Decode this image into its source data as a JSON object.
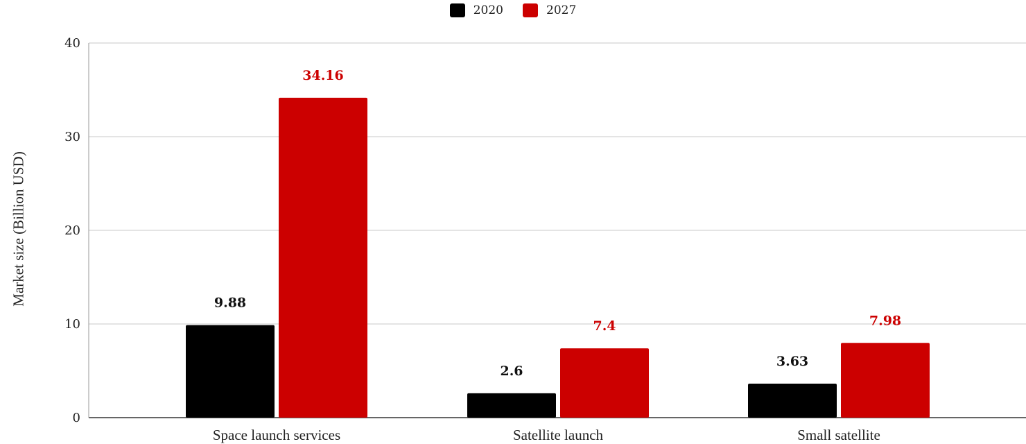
{
  "chart_data": {
    "type": "bar",
    "categories": [
      "Space launch services",
      "Satellite launch",
      "Small satellite"
    ],
    "series": [
      {
        "name": "2020",
        "color": "#000000",
        "values": [
          9.88,
          2.6,
          3.63
        ],
        "labels": [
          "9.88",
          "2.6",
          "3.63"
        ]
      },
      {
        "name": "2027",
        "color": "#cc0000",
        "values": [
          34.16,
          7.4,
          7.98
        ],
        "labels": [
          "34.16",
          "7.4",
          "7.98"
        ]
      }
    ],
    "title": "",
    "xlabel": "",
    "ylabel": "Market size (Billion USD)",
    "ylim": [
      0,
      40
    ],
    "yticks": [
      "0",
      "10",
      "20",
      "30",
      "40"
    ],
    "grid": true,
    "legend_position": "top-center"
  }
}
